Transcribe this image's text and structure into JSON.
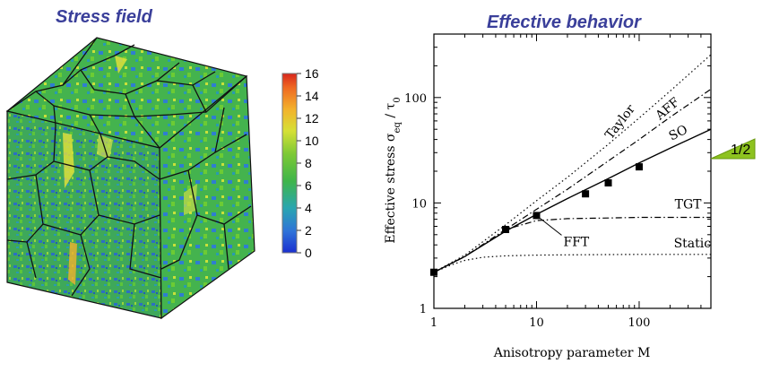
{
  "left_panel": {
    "title": "Stress field",
    "colorbar": {
      "ticks": [
        "16",
        "14",
        "12",
        "10",
        "8",
        "6",
        "4",
        "2",
        "0"
      ]
    }
  },
  "chart_data": {
    "type": "line",
    "title": "Effective behavior",
    "xlabel": "Anisotropy parameter M",
    "ylabel": "Effective stress σ_eq / τ_0",
    "xscale": "log",
    "yscale": "log",
    "xlim": [
      1,
      500
    ],
    "ylim": [
      1,
      400
    ],
    "x_ticks": [
      {
        "v": 1,
        "label": "1"
      },
      {
        "v": 10,
        "label": "10"
      },
      {
        "v": 100,
        "label": "100"
      }
    ],
    "y_ticks": [
      {
        "v": 1,
        "label": "1"
      },
      {
        "v": 10,
        "label": "10"
      },
      {
        "v": 100,
        "label": "100"
      }
    ],
    "series": [
      {
        "name": "Taylor",
        "style": "dotted",
        "x": [
          1,
          2,
          5,
          10,
          20,
          50,
          100,
          200,
          500
        ],
        "y": [
          2.2,
          3.2,
          6.2,
          10.5,
          17.5,
          36,
          64,
          115,
          255
        ]
      },
      {
        "name": "AFF",
        "style": "dashdot",
        "x": [
          1,
          2,
          5,
          10,
          20,
          50,
          100,
          200,
          500
        ],
        "y": [
          2.2,
          3.1,
          5.6,
          8.7,
          13.5,
          25,
          40,
          65,
          120
        ]
      },
      {
        "name": "SO",
        "style": "solid",
        "x": [
          1,
          2,
          5,
          10,
          20,
          50,
          100,
          200,
          500
        ],
        "y": [
          2.2,
          3.1,
          5.4,
          7.8,
          11,
          17,
          24,
          33,
          50
        ]
      },
      {
        "name": "TGT",
        "style": "dashdot",
        "x": [
          1,
          2,
          5,
          10,
          20,
          50,
          100,
          200,
          500
        ],
        "y": [
          2.2,
          3.1,
          5.6,
          6.8,
          7.1,
          7.2,
          7.3,
          7.3,
          7.3
        ]
      },
      {
        "name": "Static",
        "style": "dotted",
        "x": [
          1,
          1.5,
          2,
          3,
          5,
          10,
          20,
          50,
          100,
          500
        ],
        "y": [
          2.2,
          2.6,
          2.85,
          3.05,
          3.15,
          3.2,
          3.22,
          3.24,
          3.25,
          3.25
        ]
      },
      {
        "name": "FFT",
        "style": "markers",
        "x": [
          1,
          5,
          10,
          30,
          50,
          100
        ],
        "y": [
          2.2,
          5.6,
          7.6,
          12.2,
          15.5,
          22
        ]
      }
    ],
    "slope_annotation": {
      "label": "1/2",
      "color": "#8dc21f"
    }
  }
}
